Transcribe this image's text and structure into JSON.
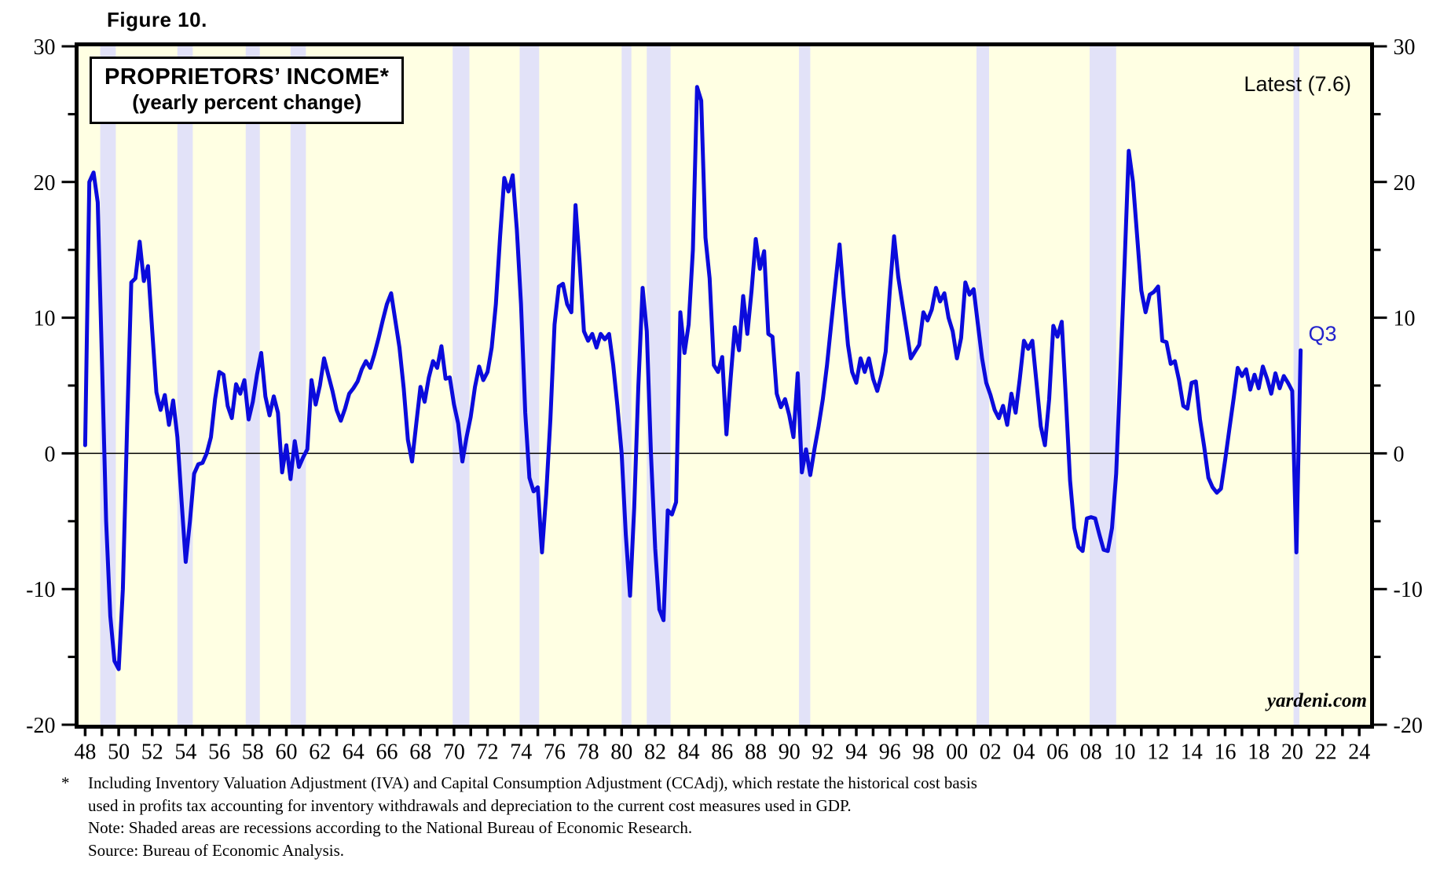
{
  "figure_label": "Figure 10.",
  "chart": {
    "title_line1": "PROPRIETORS’ INCOME*",
    "title_line2": "(yearly percent change)",
    "latest_label": "Latest (7.6)",
    "point_label": "Q3",
    "watermark": "yardeni.com",
    "colors": {
      "plot_background": "#FFFFE3",
      "recession_band": "#E2E2F8",
      "line": "#0B0BDC",
      "axis": "#000000",
      "zero_line": "#000000",
      "point_label_color": "#2222CC"
    }
  },
  "footnotes": {
    "marker": "*",
    "lines": [
      "Including Inventory Valuation Adjustment (IVA) and Capital Consumption Adjustment (CCAdj), which restate the historical cost basis",
      "used in profits tax accounting for inventory withdrawals and depreciation to the current cost measures used in GDP.",
      "Note: Shaded areas are recessions according to the National Bureau of Economic Research.",
      "Source: Bureau of Economic Analysis."
    ]
  },
  "chart_data": {
    "type": "line",
    "title": "PROPRIETORS' INCOME (yearly percent change)",
    "xlabel": "",
    "ylabel": "yearly percent change",
    "ylim": [
      -20,
      30
    ],
    "xlim": [
      1947.7,
      2024.6
    ],
    "grid": false,
    "legend_position": "none",
    "y_ticks_major": [
      30,
      20,
      10,
      0,
      -10,
      -20
    ],
    "y_tick_labels": [
      "30",
      "20",
      "10",
      "0",
      "-10",
      "-20"
    ],
    "y_ticks_minor": [
      25,
      15,
      5,
      -5,
      -15
    ],
    "x_tick_years": [
      1948,
      1950,
      1952,
      1954,
      1956,
      1958,
      1960,
      1962,
      1964,
      1966,
      1968,
      1970,
      1972,
      1974,
      1976,
      1978,
      1980,
      1982,
      1984,
      1986,
      1988,
      1990,
      1992,
      1994,
      1996,
      1998,
      2000,
      2002,
      2004,
      2006,
      2008,
      2010,
      2012,
      2014,
      2016,
      2018,
      2020,
      2022,
      2024
    ],
    "x_tick_labels": [
      "48",
      "50",
      "52",
      "54",
      "56",
      "58",
      "60",
      "62",
      "64",
      "66",
      "68",
      "70",
      "72",
      "74",
      "76",
      "78",
      "80",
      "82",
      "84",
      "86",
      "88",
      "90",
      "92",
      "94",
      "96",
      "98",
      "00",
      "02",
      "04",
      "06",
      "08",
      "10",
      "12",
      "14",
      "16",
      "18",
      "20",
      "22",
      "24"
    ],
    "x_minor_tick_every_year": true,
    "recessions": [
      [
        1948.9,
        1949.83
      ],
      [
        1953.5,
        1954.42
      ],
      [
        1957.58,
        1958.42
      ],
      [
        1960.25,
        1961.17
      ],
      [
        1969.92,
        1970.92
      ],
      [
        1973.92,
        1975.08
      ],
      [
        1980.0,
        1980.58
      ],
      [
        1981.5,
        1982.92
      ],
      [
        1990.58,
        1991.25
      ],
      [
        2001.17,
        2001.92
      ],
      [
        2007.92,
        2009.5
      ],
      [
        2020.08,
        2020.42
      ]
    ],
    "latest_value": 7.6,
    "latest_quarter": "Q3",
    "series": [
      {
        "name": "Proprietors' income, yearly percent change (quarterly)",
        "start_year": 1948,
        "points_per_year": 4,
        "values_by_year": [
          [
            0.6,
            20.0,
            20.7,
            18.5
          ],
          [
            7.0,
            -5.0,
            -12.0,
            -15.3
          ],
          [
            -15.9,
            -10.0,
            2.0,
            12.6
          ],
          [
            12.9,
            15.6,
            12.7,
            13.8
          ],
          [
            9.0,
            4.5,
            3.2,
            4.3
          ],
          [
            2.1,
            3.9,
            1.2,
            -3.5
          ],
          [
            -8.0,
            -5.0,
            -1.5,
            -0.8
          ],
          [
            -0.7,
            0.0,
            1.2,
            4.0
          ],
          [
            6.0,
            5.8,
            3.5,
            2.6
          ],
          [
            5.1,
            4.4,
            5.4,
            2.5
          ],
          [
            3.8,
            5.8,
            7.4,
            4.2
          ],
          [
            2.8,
            4.2,
            3.0,
            -1.4
          ],
          [
            0.6,
            -1.9,
            0.9,
            -1.0
          ],
          [
            -0.3,
            0.3,
            5.4,
            3.6
          ],
          [
            5.0,
            7.0,
            5.8,
            4.6
          ],
          [
            3.2,
            2.4,
            3.3,
            4.4
          ],
          [
            4.8,
            5.3,
            6.2,
            6.8
          ],
          [
            6.3,
            7.3,
            8.5,
            9.8
          ],
          [
            11.0,
            11.8,
            9.8,
            7.8
          ],
          [
            4.8,
            1.0,
            -0.6,
            2.2
          ],
          [
            4.9,
            3.8,
            5.6,
            6.8
          ],
          [
            6.3,
            7.9,
            5.5,
            5.6
          ],
          [
            3.6,
            2.2,
            -0.6,
            1.2
          ],
          [
            2.7,
            4.9,
            6.4,
            5.4
          ],
          [
            6.0,
            7.8,
            11.0,
            16.0
          ],
          [
            20.3,
            19.3,
            20.5,
            16.5
          ],
          [
            11.0,
            3.0,
            -1.8,
            -2.8
          ],
          [
            -2.5,
            -7.3,
            -3.0,
            2.5
          ],
          [
            9.5,
            12.3,
            12.5,
            11.0
          ],
          [
            10.4,
            18.3,
            14.0,
            9.0
          ],
          [
            8.3,
            8.8,
            7.8,
            8.8
          ],
          [
            8.4,
            8.8,
            6.5,
            3.5
          ],
          [
            0.0,
            -6.0,
            -10.5,
            -4.0
          ],
          [
            5.0,
            12.2,
            9.0,
            0.0
          ],
          [
            -7.0,
            -11.5,
            -12.3,
            -4.2
          ],
          [
            -4.5,
            -3.6,
            10.4,
            7.4
          ],
          [
            9.5,
            15.0,
            27.0,
            26.0
          ],
          [
            15.9,
            12.9,
            6.5,
            6.0
          ],
          [
            7.1,
            1.4,
            5.5,
            9.3
          ],
          [
            7.6,
            11.6,
            8.8,
            12.0
          ],
          [
            15.8,
            13.6,
            14.9,
            8.8
          ],
          [
            8.6,
            4.4,
            3.4,
            4.0
          ],
          [
            2.8,
            1.2,
            5.9,
            -1.4
          ],
          [
            0.3,
            -1.6,
            0.3,
            2.0
          ],
          [
            4.0,
            6.5,
            9.5,
            12.5
          ],
          [
            15.4,
            11.5,
            8.0,
            6.0
          ],
          [
            5.2,
            7.0,
            6.0,
            7.0
          ],
          [
            5.5,
            4.6,
            5.8,
            7.5
          ],
          [
            12.0,
            16.0,
            13.0,
            11.0
          ],
          [
            9.0,
            7.0,
            7.5,
            8.0
          ],
          [
            10.4,
            9.8,
            10.6,
            12.2
          ],
          [
            11.2,
            11.8,
            10.0,
            9.0
          ],
          [
            7.0,
            8.5,
            12.6,
            11.7
          ],
          [
            12.1,
            9.5,
            7.0,
            5.2
          ],
          [
            4.3,
            3.2,
            2.6,
            3.5
          ],
          [
            2.1,
            4.4,
            3.0,
            5.5
          ],
          [
            8.3,
            7.7,
            8.3,
            5.2
          ],
          [
            2.0,
            0.6,
            4.0,
            9.4
          ],
          [
            8.6,
            9.7,
            4.0,
            -2.0
          ],
          [
            -5.5,
            -6.9,
            -7.2,
            -4.8
          ],
          [
            -4.7,
            -4.8,
            -6.0,
            -7.1
          ],
          [
            -7.2,
            -5.5,
            -1.5,
            6.0
          ],
          [
            14.0,
            22.3,
            20.0,
            16.0
          ],
          [
            12.0,
            10.4,
            11.7,
            11.9
          ],
          [
            12.3,
            8.3,
            8.2,
            6.6
          ],
          [
            6.8,
            5.4,
            3.5,
            3.3
          ],
          [
            5.2,
            5.3,
            2.5,
            0.5
          ],
          [
            -1.8,
            -2.5,
            -2.9,
            -2.6
          ],
          [
            -0.5,
            1.8,
            4.0,
            6.3
          ],
          [
            5.7,
            6.2,
            4.7,
            5.8
          ],
          [
            4.8,
            6.4,
            5.5,
            4.4
          ],
          [
            5.9,
            4.8,
            5.7,
            5.2
          ],
          [
            4.6,
            -7.3,
            7.6
          ]
        ]
      }
    ]
  }
}
